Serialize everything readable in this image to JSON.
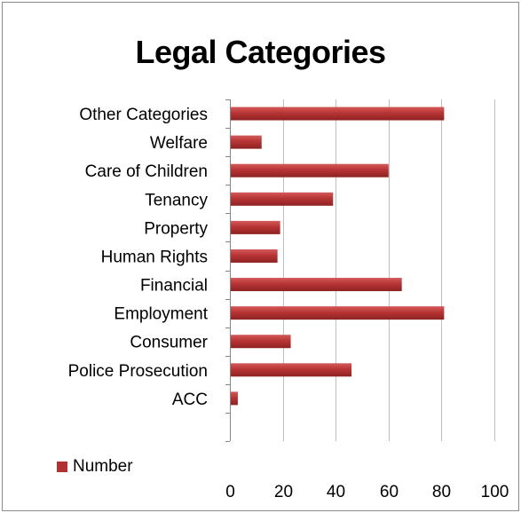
{
  "chart_data": {
    "type": "bar",
    "orientation": "horizontal",
    "title": "Legal Categories",
    "categories": [
      "ACC",
      "Police Prosecution",
      "Consumer",
      "Employment",
      "Financial",
      "Human Rights",
      "Property",
      "Tenancy",
      "Care of Children",
      "Welfare",
      "Other Categories"
    ],
    "series": [
      {
        "name": "Number",
        "values": [
          3,
          46,
          23,
          81,
          65,
          18,
          19,
          39,
          60,
          12,
          81
        ]
      }
    ],
    "xlim": [
      0,
      100
    ],
    "xticks": [
      "0",
      "20",
      "40",
      "60",
      "80",
      "100"
    ],
    "grid": "vertical",
    "legend_position": "bottom-left",
    "bar_color": "#b23232"
  }
}
